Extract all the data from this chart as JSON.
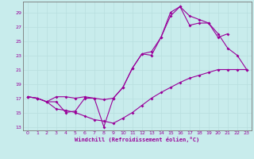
{
  "bg_color": "#c8ecec",
  "line_color": "#990099",
  "grid_color": "#b8dede",
  "xlabel": "Windchill (Refroidissement éolien,°C)",
  "xlim": [
    -0.5,
    23.5
  ],
  "ylim": [
    12.5,
    30.5
  ],
  "xticks": [
    0,
    1,
    2,
    3,
    4,
    5,
    6,
    7,
    8,
    9,
    10,
    11,
    12,
    13,
    14,
    15,
    16,
    17,
    18,
    19,
    20,
    21,
    22,
    23
  ],
  "yticks": [
    13,
    15,
    17,
    19,
    21,
    23,
    25,
    27,
    29
  ],
  "line1": {
    "x": [
      0,
      1,
      2,
      3,
      4,
      5,
      6,
      7,
      8,
      9,
      10,
      11,
      12,
      13,
      14,
      15,
      16,
      17,
      18,
      19,
      20,
      21,
      22,
      23
    ],
    "y": [
      17.2,
      17.0,
      16.5,
      15.5,
      15.3,
      15.0,
      14.5,
      14.0,
      13.8,
      13.5,
      14.2,
      15.0,
      16.0,
      17.0,
      17.8,
      18.5,
      19.2,
      19.8,
      20.2,
      20.6,
      21.0,
      21.0,
      21.0,
      21.0
    ]
  },
  "line2": {
    "x": [
      0,
      1,
      2,
      3,
      4,
      5,
      6,
      7,
      8,
      9,
      10,
      11,
      12,
      13,
      14,
      15,
      16,
      17,
      18,
      19,
      20,
      21,
      22,
      23
    ],
    "y": [
      17.2,
      17.0,
      16.5,
      17.2,
      17.2,
      17.0,
      17.2,
      17.0,
      16.8,
      17.0,
      18.5,
      21.2,
      23.2,
      23.5,
      25.5,
      28.5,
      29.8,
      28.5,
      28.0,
      27.5,
      26.0,
      24.0,
      23.0,
      21.0
    ]
  },
  "line3": {
    "x": [
      0,
      1,
      2,
      3,
      4,
      5,
      6,
      7,
      8,
      9,
      10,
      11,
      12,
      13,
      14,
      15,
      16,
      17,
      18,
      19,
      20,
      21
    ],
    "y": [
      17.2,
      17.0,
      16.5,
      16.5,
      15.0,
      15.2,
      17.0,
      17.0,
      13.0,
      17.0,
      18.5,
      21.2,
      23.2,
      23.0,
      25.5,
      29.0,
      29.8,
      27.2,
      27.5,
      27.5,
      25.5,
      26.0
    ]
  }
}
